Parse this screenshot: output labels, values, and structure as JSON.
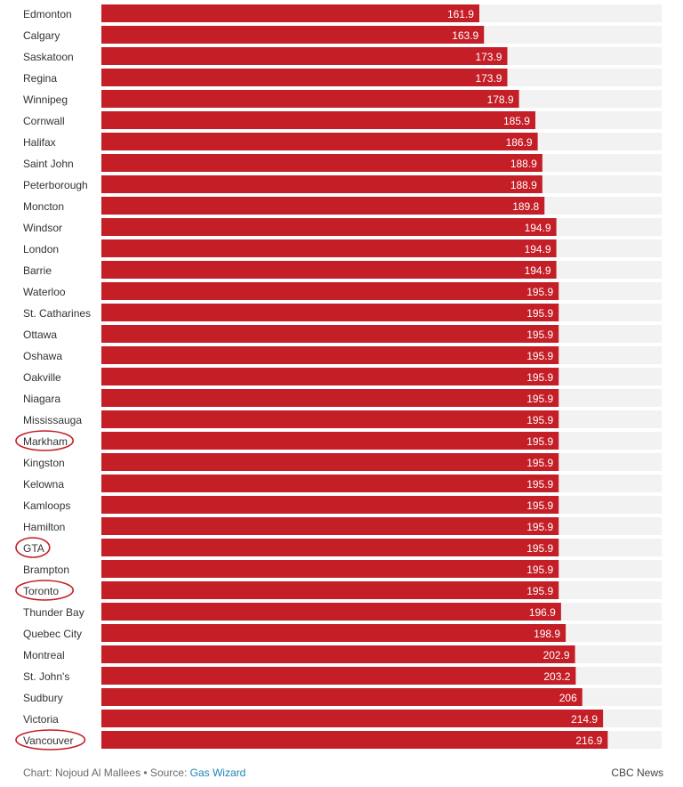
{
  "chart_data": {
    "type": "bar",
    "orientation": "horizontal",
    "categories": [
      "Edmonton",
      "Calgary",
      "Saskatoon",
      "Regina",
      "Winnipeg",
      "Cornwall",
      "Halifax",
      "Saint John",
      "Peterborough",
      "Moncton",
      "Windsor",
      "London",
      "Barrie",
      "Waterloo",
      "St. Catharines",
      "Ottawa",
      "Oshawa",
      "Oakville",
      "Niagara",
      "Mississauga",
      "Markham",
      "Kingston",
      "Kelowna",
      "Kamloops",
      "Hamilton",
      "GTA",
      "Brampton",
      "Toronto",
      "Thunder Bay",
      "Quebec City",
      "Montreal",
      "St. John's",
      "Sudbury",
      "Victoria",
      "Vancouver"
    ],
    "values": [
      161.9,
      163.9,
      173.9,
      173.9,
      178.9,
      185.9,
      186.9,
      188.9,
      188.9,
      189.8,
      194.9,
      194.9,
      194.9,
      195.9,
      195.9,
      195.9,
      195.9,
      195.9,
      195.9,
      195.9,
      195.9,
      195.9,
      195.9,
      195.9,
      195.9,
      195.9,
      195.9,
      195.9,
      196.9,
      198.9,
      202.9,
      203.2,
      206,
      214.9,
      216.9
    ],
    "value_labels": [
      "161.9",
      "163.9",
      "173.9",
      "173.9",
      "178.9",
      "185.9",
      "186.9",
      "188.9",
      "188.9",
      "189.8",
      "194.9",
      "194.9",
      "194.9",
      "195.9",
      "195.9",
      "195.9",
      "195.9",
      "195.9",
      "195.9",
      "195.9",
      "195.9",
      "195.9",
      "195.9",
      "195.9",
      "195.9",
      "195.9",
      "195.9",
      "195.9",
      "196.9",
      "198.9",
      "202.9",
      "203.2",
      "206",
      "214.9",
      "216.9"
    ],
    "highlighted": [
      "Markham",
      "GTA",
      "Toronto",
      "Vancouver"
    ],
    "xlim": [
      0,
      240
    ],
    "grid": false,
    "legend": "none"
  },
  "colors": {
    "bar": "#c41e27",
    "track": "#f2f2f2",
    "highlight_ring": "#c41e27"
  },
  "footer": {
    "credit": "Chart: Nojoud Al Mallees • Source: ",
    "source_link": "Gas Wizard",
    "brand": "CBC News"
  }
}
